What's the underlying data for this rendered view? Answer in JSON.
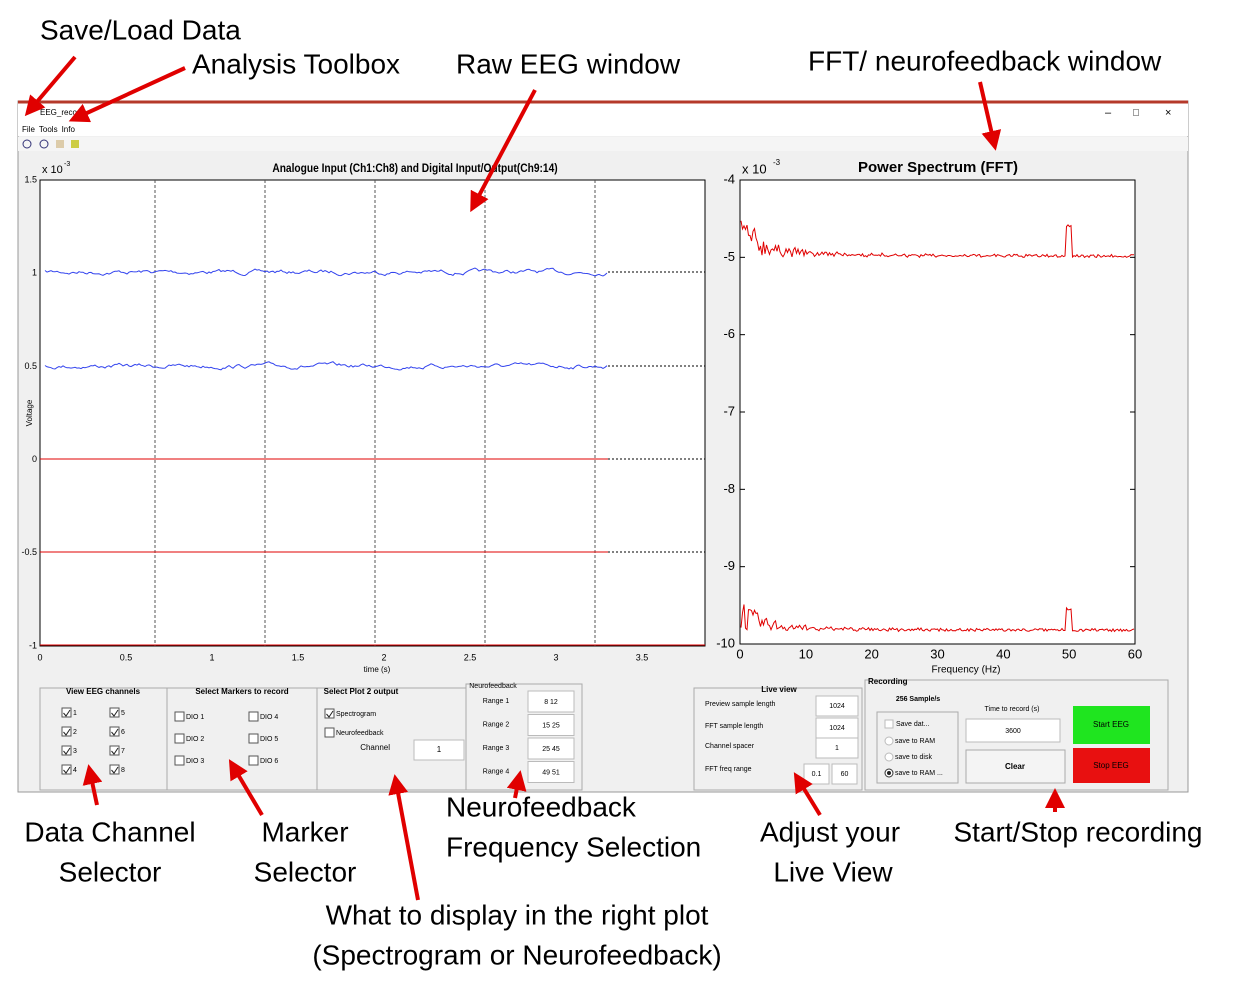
{
  "annotations": {
    "save_load": "Save/Load Data",
    "analysis_toolbox": "Analysis Toolbox",
    "raw_eeg": "Raw EEG window",
    "fft_window": "FFT/ neurofeedback window",
    "channel_selector": [
      "Data Channel",
      "Selector"
    ],
    "marker_selector": [
      "Marker",
      "Selector"
    ],
    "nf_selection": [
      "Neurofeedback",
      "Frequency Selection"
    ],
    "live_view": [
      "Adjust your",
      "Live View"
    ],
    "start_stop": "Start/Stop recording",
    "right_plot_choice": [
      "What to display in the right plot",
      "(Spectrogram or Neurofeedback)"
    ]
  },
  "window": {
    "title": "EEG_reco...",
    "menu": [
      "File",
      "Tools",
      "Info"
    ]
  },
  "left_plot": {
    "title": "Analogue Input (Ch1:Ch8) and Digital Input/Output(Ch9:14)",
    "multiplier": "x 10",
    "exponent": "-3",
    "yticks": [
      "1.5",
      "1",
      "0.5",
      "0",
      "-0.5",
      "-1"
    ],
    "xticks": [
      "0",
      "0.5",
      "1",
      "1.5",
      "2",
      "2.5",
      "3",
      "3.5"
    ],
    "xlabel": "time (s)",
    "ylabel": "Voltage"
  },
  "right_plot": {
    "title": "Power Spectrum (FFT)",
    "multiplier": "x 10",
    "exponent": "-3",
    "yticks": [
      "-4",
      "-5",
      "-6",
      "-7",
      "-8",
      "-9",
      "-10"
    ],
    "xticks": [
      "0",
      "10",
      "20",
      "30",
      "40",
      "50",
      "60"
    ],
    "xlabel": "Frequency (Hz)"
  },
  "channels": {
    "title": "View EEG channels",
    "items": [
      {
        "label": "1",
        "checked": true
      },
      {
        "label": "2",
        "checked": true
      },
      {
        "label": "3",
        "checked": true
      },
      {
        "label": "4",
        "checked": true
      },
      {
        "label": "5",
        "checked": true
      },
      {
        "label": "6",
        "checked": true
      },
      {
        "label": "7",
        "checked": true
      },
      {
        "label": "8",
        "checked": true
      }
    ]
  },
  "markers": {
    "title": "Select Markers to record",
    "items": [
      {
        "label": "DIO 1",
        "checked": false
      },
      {
        "label": "DIO 2",
        "checked": false
      },
      {
        "label": "DIO 3",
        "checked": false
      },
      {
        "label": "DIO 4",
        "checked": false
      },
      {
        "label": "DIO 5",
        "checked": false
      },
      {
        "label": "DIO 6",
        "checked": false
      }
    ]
  },
  "plot2": {
    "title": "Select Plot 2 output",
    "items": [
      {
        "label": "Spectrogram",
        "checked": true
      },
      {
        "label": "Neurofeedback",
        "checked": false
      }
    ],
    "channel_label": "Channel",
    "channel": "1"
  },
  "neurofeedback": {
    "title": "Neurofeedback",
    "ranges": [
      {
        "label": "Range 1",
        "value": "8 12"
      },
      {
        "label": "Range 2",
        "value": "15 25"
      },
      {
        "label": "Range 3",
        "value": "25 45"
      },
      {
        "label": "Range 4",
        "value": "49 51"
      }
    ]
  },
  "live_view": {
    "title": "Live view",
    "rows": [
      {
        "label": "Preview sample length",
        "values": [
          "1024"
        ]
      },
      {
        "label": "FFT sample length",
        "values": [
          "1024"
        ]
      },
      {
        "label": "Channel spacer",
        "values": [
          "1"
        ]
      },
      {
        "label": "FFT freq range",
        "values": [
          "0.1",
          "60"
        ]
      }
    ]
  },
  "recording": {
    "title": "Recording",
    "rate": "256 Sample/s",
    "save_label": "Save dat...",
    "options": [
      "save to RAM",
      "save to disk",
      "save to RAM ..."
    ],
    "selected": 2,
    "time_label": "Time to record (s)",
    "time": "3600",
    "clear": "Clear",
    "start": "Start EEG",
    "stop": "Stop EEG"
  }
}
